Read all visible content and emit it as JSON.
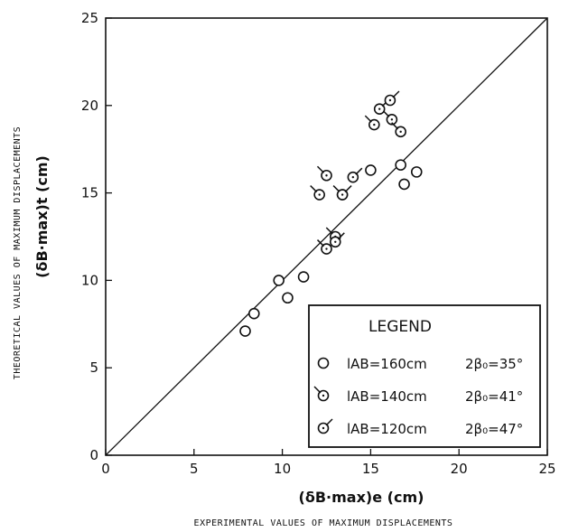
{
  "chart_data": {
    "type": "scatter",
    "title": "",
    "xlabel": "(δB·max)e  (cm)",
    "xlabel_sub": "EXPERIMENTAL VALUES OF MAXIMUM DISPLACEMENTS",
    "ylabel": "(δB·max)t  (cm)",
    "ylabel_sub": "THEORETICAL VALUES OF MAXIMUM DISPLACEMENTS",
    "xlim": [
      0,
      25
    ],
    "ylim": [
      0,
      25
    ],
    "xticks": [
      "0",
      "5",
      "10",
      "15",
      "20",
      "25"
    ],
    "yticks": [
      "0",
      "5",
      "10",
      "15",
      "20",
      "25"
    ],
    "grid": false,
    "reference_line": "y = x",
    "legend": {
      "title": "LEGEND",
      "placement": "bottom-right",
      "entries": [
        {
          "marker": "circle",
          "label": "lAB=160cm",
          "angle": "2β₀=35°"
        },
        {
          "marker": "circle-tick-left",
          "label": "lAB=140cm",
          "angle": "2β₀=41°"
        },
        {
          "marker": "circle-tick-right",
          "label": "lAB=120cm",
          "angle": "2β₀=47°"
        }
      ]
    },
    "series": [
      {
        "name": "lAB=160cm 2β₀=35°",
        "marker": "circle",
        "points": [
          [
            7.9,
            7.1
          ],
          [
            8.4,
            8.1
          ],
          [
            9.8,
            10.0
          ],
          [
            10.3,
            9.0
          ],
          [
            11.2,
            10.2
          ],
          [
            15.0,
            16.3
          ],
          [
            16.7,
            16.6
          ],
          [
            16.9,
            15.5
          ],
          [
            17.6,
            16.2
          ]
        ]
      },
      {
        "name": "lAB=140cm 2β₀=41°",
        "marker": "circle-tick-left",
        "points": [
          [
            12.1,
            14.9
          ],
          [
            12.5,
            11.8
          ],
          [
            12.5,
            16.0
          ],
          [
            13.0,
            12.5
          ],
          [
            13.4,
            14.9
          ],
          [
            15.2,
            18.9
          ],
          [
            16.2,
            19.2
          ],
          [
            16.7,
            18.5
          ]
        ]
      },
      {
        "name": "lAB=120cm 2β₀=47°",
        "marker": "circle-tick-right",
        "points": [
          [
            13.0,
            12.2
          ],
          [
            13.4,
            14.9
          ],
          [
            14.0,
            15.9
          ],
          [
            15.5,
            19.8
          ],
          [
            16.1,
            20.3
          ]
        ]
      }
    ]
  }
}
